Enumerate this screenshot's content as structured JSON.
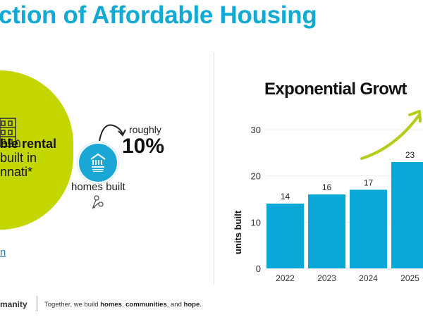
{
  "slide": {
    "title": "ction of Affordable Housing",
    "accent_color": "#12a9d4",
    "circle_color": "#c4d600",
    "circle_text": [
      "ble rental",
      "built in",
      "nnati*"
    ],
    "link_text": "n",
    "growth": {
      "label_top": "roughly",
      "value": "10%",
      "caption": "homes built"
    },
    "footer": {
      "brand": "manity",
      "tagline_parts": [
        "Together, we build ",
        "homes",
        ", ",
        "communities",
        ", and ",
        "hope",
        "."
      ]
    }
  },
  "chart_data": {
    "type": "bar",
    "title": "Exponential Growt",
    "ylabel": "units built",
    "categories": [
      "2022",
      "2023",
      "2024",
      "2025"
    ],
    "values": [
      14,
      16,
      17,
      23
    ],
    "data_labels": [
      "14",
      "16",
      "17",
      "23"
    ],
    "ylim": [
      0,
      30
    ],
    "yticks": [
      "0",
      "10",
      "20",
      "30"
    ],
    "grid": true,
    "bar_color": "#0aa8d6",
    "arrow_color": "#b5cc18"
  }
}
